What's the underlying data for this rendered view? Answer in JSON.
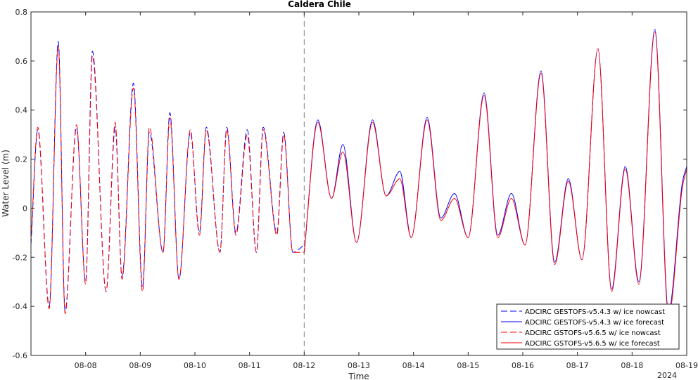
{
  "chart_data": {
    "type": "line",
    "title": "Caldera Chile",
    "xlabel": "Time",
    "ylabel": "Water Level (m)",
    "year_label": "2024",
    "x_ticks": [
      "08-08",
      "08-09",
      "08-10",
      "08-11",
      "08-12",
      "08-13",
      "08-14",
      "08-15",
      "08-16",
      "08-17",
      "08-18",
      "08-19"
    ],
    "xlim": [
      "2024-08-07T00:00",
      "2024-08-19T00:00"
    ],
    "y_ticks": [
      "-0.6",
      "-0.4",
      "-0.2",
      "0",
      "0.2",
      "0.4",
      "0.6",
      "0.8"
    ],
    "ylim": [
      -0.6,
      0.8
    ],
    "nowcast_forecast_boundary": "2024-08-12T00:00",
    "grid": false,
    "legend_position": "bottom-right",
    "series": [
      {
        "name": "ADCIRC GESTOFS-v5.4.3 w/ ice nowcast",
        "color": "#0000ff",
        "dash": "dashed",
        "x": [
          "2024-08-07T00:00",
          "2024-08-07T03:00",
          "2024-08-07T08:00",
          "2024-08-07T12:00",
          "2024-08-07T15:00",
          "2024-08-07T20:00",
          "2024-08-08T00:00",
          "2024-08-08T03:00",
          "2024-08-08T09:00",
          "2024-08-08T13:00",
          "2024-08-08T16:00",
          "2024-08-08T21:00",
          "2024-08-09T01:00",
          "2024-08-09T04:00",
          "2024-08-09T10:00",
          "2024-08-09T13:00",
          "2024-08-09T17:00",
          "2024-08-09T22:00",
          "2024-08-10T02:00",
          "2024-08-10T05:00",
          "2024-08-10T11:00",
          "2024-08-10T14:00",
          "2024-08-10T18:00",
          "2024-08-10T23:00",
          "2024-08-11T03:00",
          "2024-08-11T06:00",
          "2024-08-11T12:00",
          "2024-08-11T15:00",
          "2024-08-11T19:00",
          "2024-08-11T24:00"
        ],
        "values": [
          -0.15,
          0.32,
          -0.4,
          0.68,
          -0.42,
          0.33,
          -0.3,
          0.64,
          -0.34,
          0.33,
          -0.28,
          0.51,
          -0.32,
          0.31,
          -0.18,
          0.39,
          -0.29,
          0.31,
          -0.1,
          0.33,
          -0.18,
          0.33,
          -0.1,
          0.32,
          -0.18,
          0.33,
          -0.1,
          0.31,
          -0.18,
          -0.15
        ]
      },
      {
        "name": "ADCIRC GESTOFS-v5.4.3 w/ ice forecast",
        "color": "#0000ff",
        "dash": "solid",
        "x": [
          "2024-08-12T00:00",
          "2024-08-12T06:00",
          "2024-08-12T12:00",
          "2024-08-12T17:00",
          "2024-08-12T23:00",
          "2024-08-13T06:00",
          "2024-08-13T12:00",
          "2024-08-13T18:00",
          "2024-08-13T23:00",
          "2024-08-14T06:00",
          "2024-08-14T12:00",
          "2024-08-14T18:00",
          "2024-08-15T00:00",
          "2024-08-15T07:00",
          "2024-08-15T13:00",
          "2024-08-15T19:00",
          "2024-08-16T01:00",
          "2024-08-16T08:00",
          "2024-08-16T14:00",
          "2024-08-16T20:00",
          "2024-08-17T02:00",
          "2024-08-17T09:00",
          "2024-08-17T15:00",
          "2024-08-17T21:00",
          "2024-08-18T03:00",
          "2024-08-18T10:00",
          "2024-08-18T16:00",
          "2024-08-18T22:00",
          "2024-08-19T00:00"
        ],
        "values": [
          -0.18,
          0.36,
          0.04,
          0.26,
          -0.14,
          0.36,
          0.05,
          0.15,
          -0.12,
          0.37,
          -0.04,
          0.06,
          -0.12,
          0.47,
          -0.11,
          0.06,
          -0.15,
          0.56,
          -0.22,
          0.12,
          -0.21,
          0.65,
          -0.33,
          0.17,
          -0.3,
          0.73,
          -0.42,
          0.1,
          0.17
        ]
      },
      {
        "name": "ADCIRC GSTOFS-v5.6.5 w/ ice nowcast",
        "color": "#ff0000",
        "dash": "dashed",
        "x": [
          "2024-08-07T00:00",
          "2024-08-07T03:00",
          "2024-08-07T08:00",
          "2024-08-07T12:00",
          "2024-08-07T15:00",
          "2024-08-07T20:00",
          "2024-08-08T00:00",
          "2024-08-08T03:00",
          "2024-08-08T09:00",
          "2024-08-08T13:00",
          "2024-08-08T16:00",
          "2024-08-08T21:00",
          "2024-08-09T01:00",
          "2024-08-09T04:00",
          "2024-08-09T10:00",
          "2024-08-09T13:00",
          "2024-08-09T17:00",
          "2024-08-09T22:00",
          "2024-08-10T02:00",
          "2024-08-10T05:00",
          "2024-08-10T11:00",
          "2024-08-10T14:00",
          "2024-08-10T18:00",
          "2024-08-10T23:00",
          "2024-08-11T03:00",
          "2024-08-11T06:00",
          "2024-08-11T12:00",
          "2024-08-11T15:00",
          "2024-08-11T19:00",
          "2024-08-11T24:00"
        ],
        "values": [
          -0.13,
          0.33,
          -0.41,
          0.66,
          -0.43,
          0.34,
          -0.31,
          0.62,
          -0.34,
          0.35,
          -0.29,
          0.49,
          -0.34,
          0.33,
          -0.18,
          0.37,
          -0.29,
          0.32,
          -0.11,
          0.32,
          -0.18,
          0.32,
          -0.11,
          0.3,
          -0.18,
          0.32,
          -0.11,
          0.3,
          -0.18,
          -0.18
        ]
      },
      {
        "name": "ADCIRC GSTOFS-v5.6.5 w/ ice forecast",
        "color": "#ff0000",
        "dash": "solid",
        "x": [
          "2024-08-12T00:00",
          "2024-08-12T06:00",
          "2024-08-12T12:00",
          "2024-08-12T17:00",
          "2024-08-12T23:00",
          "2024-08-13T06:00",
          "2024-08-13T12:00",
          "2024-08-13T18:00",
          "2024-08-13T23:00",
          "2024-08-14T06:00",
          "2024-08-14T12:00",
          "2024-08-14T18:00",
          "2024-08-15T00:00",
          "2024-08-15T07:00",
          "2024-08-15T13:00",
          "2024-08-15T19:00",
          "2024-08-16T01:00",
          "2024-08-16T08:00",
          "2024-08-16T14:00",
          "2024-08-16T20:00",
          "2024-08-17T02:00",
          "2024-08-17T09:00",
          "2024-08-17T15:00",
          "2024-08-17T21:00",
          "2024-08-18T03:00",
          "2024-08-18T10:00",
          "2024-08-18T16:00",
          "2024-08-18T22:00",
          "2024-08-19T00:00"
        ],
        "values": [
          -0.18,
          0.35,
          0.04,
          0.23,
          -0.14,
          0.35,
          0.05,
          0.12,
          -0.12,
          0.36,
          -0.05,
          0.04,
          -0.12,
          0.46,
          -0.12,
          0.04,
          -0.15,
          0.55,
          -0.23,
          0.11,
          -0.21,
          0.65,
          -0.34,
          0.16,
          -0.31,
          0.72,
          -0.44,
          0.08,
          0.16
        ]
      }
    ]
  }
}
